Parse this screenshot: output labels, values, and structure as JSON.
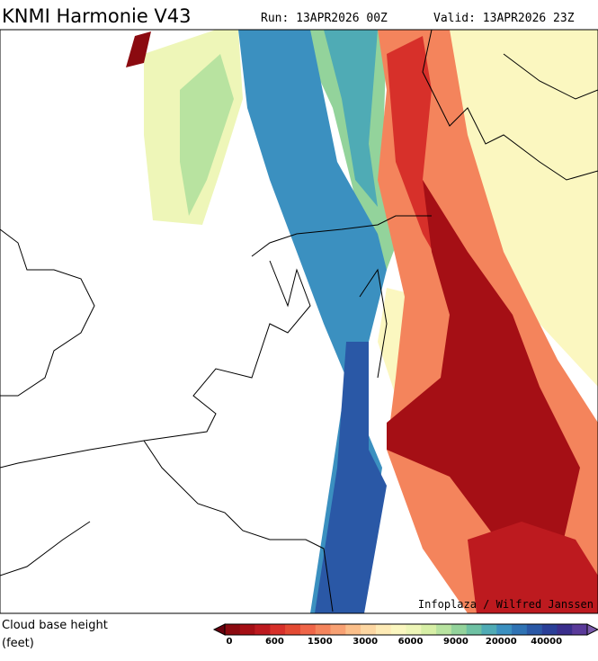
{
  "header": {
    "title": "KNMI Harmonie V43",
    "run": "Run: 13APR2026 00Z",
    "valid": "Valid: 13APR2026 23Z"
  },
  "map": {
    "credit": "Infoplaza / Wilfred Janssen"
  },
  "legend": {
    "title": [
      "Cloud base height",
      "(feet)"
    ],
    "ticks": [
      0,
      600,
      1500,
      3000,
      6000,
      9000,
      20000,
      40000
    ],
    "colors": [
      "#67000d",
      "#8b0a10",
      "#a50f15",
      "#bd1a1f",
      "#d7302a",
      "#e34a33",
      "#ef6548",
      "#f4845c",
      "#f8a173",
      "#fbbf8a",
      "#fdd7a2",
      "#feebb6",
      "#fbf7c0",
      "#eef6b8",
      "#d7efa6",
      "#b8e3a0",
      "#93d39b",
      "#6ec1a3",
      "#4fabb5",
      "#3b90c0",
      "#2f73b4",
      "#2a58a6",
      "#2a3f98",
      "#3a2e8c",
      "#5a3a9a",
      "#7a5aaa"
    ]
  }
}
